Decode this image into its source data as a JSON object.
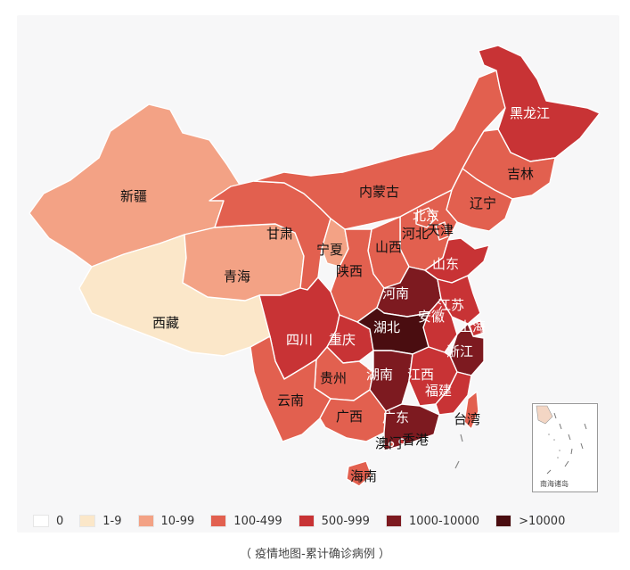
{
  "colors": {
    "c0": "#ffffff",
    "c1": "#fbe7c9",
    "c2": "#f3a285",
    "c3": "#e2604f",
    "c4": "#c83335",
    "c5": "#7d1a20",
    "c6": "#4a0d10"
  },
  "legend": [
    {
      "label": "0",
      "color": "#ffffff"
    },
    {
      "label": "1-9",
      "color": "#fbe7c9"
    },
    {
      "label": "10-99",
      "color": "#f3a285"
    },
    {
      "label": "100-499",
      "color": "#e2604f"
    },
    {
      "label": "500-999",
      "color": "#c83335"
    },
    {
      "label": "1000-10000",
      "color": "#7d1a20"
    },
    {
      "label": ">10000",
      "color": "#4a0d10"
    }
  ],
  "provinces": {
    "xinjiang": "新疆",
    "xizang": "西藏",
    "qinghai": "青海",
    "gansu": "甘肃",
    "neimenggu": "内蒙古",
    "heilongjiang": "黑龙江",
    "jilin": "吉林",
    "liaoning": "辽宁",
    "beijing": "北京",
    "tianjin": "天津",
    "hebei": "河北",
    "shanxi": "山西",
    "ningxia": "宁夏",
    "shaanxi": "陕西",
    "shandong": "山东",
    "henan": "河南",
    "jiangsu": "江苏",
    "anhui": "安徽",
    "shanghai": "上海",
    "hubei": "湖北",
    "sichuan": "四川",
    "chongqing": "重庆",
    "zhejiang": "浙江",
    "guizhou": "贵州",
    "hunan": "湖南",
    "jiangxi": "江西",
    "yunnan": "云南",
    "fujian": "福建",
    "guangxi": "广西",
    "guangdong": "广东",
    "taiwan": "台湾",
    "aomen": "澳门",
    "xianggang": "香港",
    "hainan": "海南"
  },
  "inset_label": "南海诸岛",
  "caption": "（ 疫情地图-累计确诊病例 ）"
}
